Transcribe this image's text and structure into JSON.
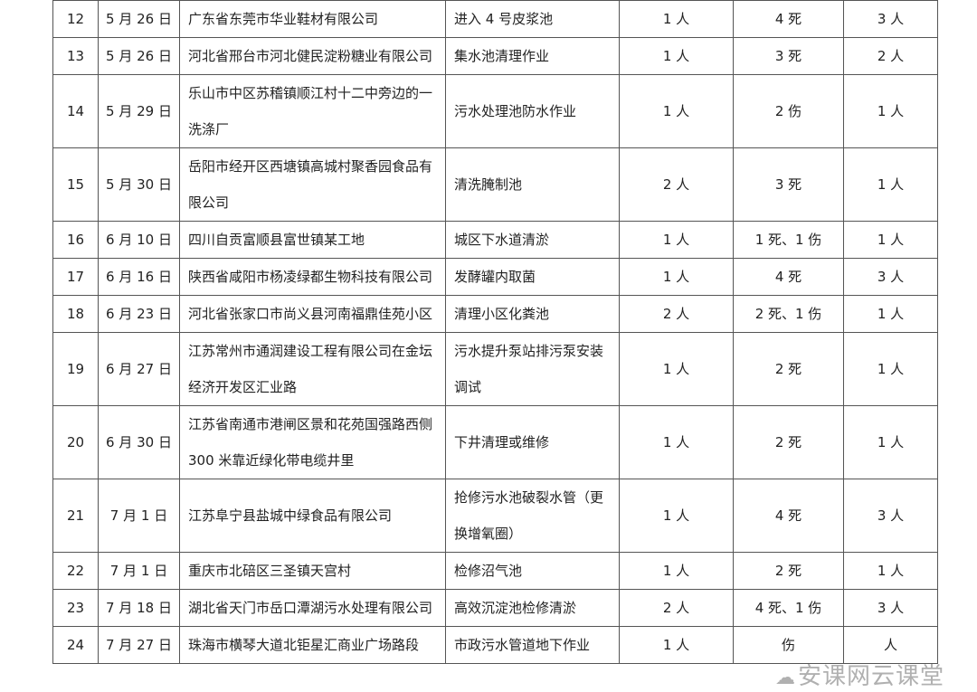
{
  "rows": [
    {
      "no": "12",
      "date": "5 月 26 日",
      "unit": "广东省东莞市华业鞋材有限公司",
      "task": "进入 4 号皮浆池",
      "workers": "1 人",
      "casualties": "4 死",
      "rescuers": "3 人"
    },
    {
      "no": "13",
      "date": "5 月 26 日",
      "unit": "河北省邢台市河北健民淀粉糖业有限公司",
      "task": "集水池清理作业",
      "workers": "1 人",
      "casualties": "3 死",
      "rescuers": "2 人"
    },
    {
      "no": "14",
      "date": "5 月 29 日",
      "unit": "乐山市中区苏稽镇顺江村十二中旁边的一洗涤厂",
      "task": "污水处理池防水作业",
      "workers": "1 人",
      "casualties": "2 伤",
      "rescuers": "1 人"
    },
    {
      "no": "15",
      "date": "5 月 30 日",
      "unit": "岳阳市经开区西塘镇高城村聚香园食品有限公司",
      "task": "清洗腌制池",
      "workers": "2 人",
      "casualties": "3 死",
      "rescuers": "1 人"
    },
    {
      "no": "16",
      "date": "6 月 10 日",
      "unit": "四川自贡富顺县富世镇某工地",
      "task": "城区下水道清淤",
      "workers": "1 人",
      "casualties": "1 死、1 伤",
      "rescuers": "1 人"
    },
    {
      "no": "17",
      "date": "6 月 16 日",
      "unit": "陕西省咸阳市杨凌绿都生物科技有限公司",
      "task": "发酵罐内取菌",
      "workers": "1 人",
      "casualties": "4 死",
      "rescuers": "3 人"
    },
    {
      "no": "18",
      "date": "6 月 23 日",
      "unit": "河北省张家口市尚义县河南福鼎佳苑小区",
      "task": "清理小区化粪池",
      "workers": "2 人",
      "casualties": "2 死、1 伤",
      "rescuers": "1 人"
    },
    {
      "no": "19",
      "date": "6 月 27 日",
      "unit": "江苏常州市通润建设工程有限公司在金坛经济开发区汇业路",
      "task": "污水提升泵站排污泵安装调试",
      "workers": "1 人",
      "casualties": "2 死",
      "rescuers": "1 人"
    },
    {
      "no": "20",
      "date": "6 月 30 日",
      "unit": "江苏省南通市港闸区景和花苑国强路西侧 300 米靠近绿化带电缆井里",
      "task": "下井清理或维修",
      "workers": "1 人",
      "casualties": "2 死",
      "rescuers": "1 人"
    },
    {
      "no": "21",
      "date": "7 月 1 日",
      "unit": "江苏阜宁县盐城中绿食品有限公司",
      "task": "抢修污水池破裂水管（更换增氧圈）",
      "workers": "1 人",
      "casualties": "4 死",
      "rescuers": "3 人"
    },
    {
      "no": "22",
      "date": "7 月 1 日",
      "unit": "重庆市北碚区三圣镇天宫村",
      "task": "检修沼气池",
      "workers": "1 人",
      "casualties": "2 死",
      "rescuers": "1 人"
    },
    {
      "no": "23",
      "date": "7 月 18 日",
      "unit": "湖北省天门市岳口潭湖污水处理有限公司",
      "task": "高效沉淀池检修清淤",
      "workers": "2 人",
      "casualties": "4 死、1 伤",
      "rescuers": "3 人"
    },
    {
      "no": "24",
      "date": "7 月 27 日",
      "unit": "珠海市横琴大道北钜星汇商业广场路段",
      "task": "市政污水管道地下作业",
      "workers": "1 人",
      "casualties": "伤",
      "rescuers": "人"
    }
  ],
  "watermark": {
    "text": "安课网云课堂",
    "icon": "wechat-icon"
  }
}
